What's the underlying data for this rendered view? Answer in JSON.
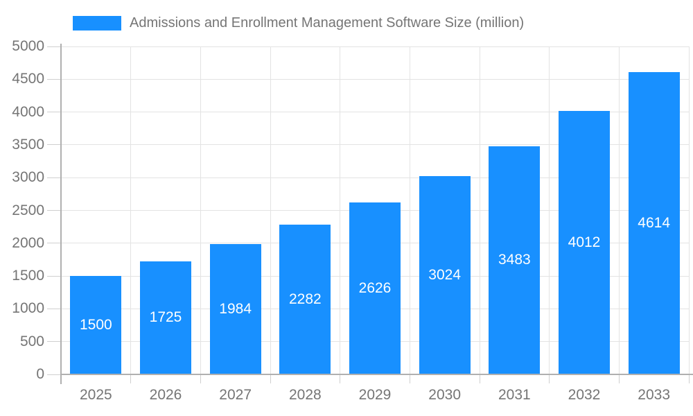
{
  "chart_data": {
    "type": "bar",
    "title": "Admissions and Enrollment Management Software Size (million)",
    "categories": [
      "2025",
      "2026",
      "2027",
      "2028",
      "2029",
      "2030",
      "2031",
      "2032",
      "2033"
    ],
    "values": [
      1500,
      1725,
      1984,
      2282,
      2626,
      3024,
      3483,
      4012,
      4614
    ],
    "xlabel": "",
    "ylabel": "",
    "ylim": [
      0,
      5000
    ],
    "yticks": [
      0,
      500,
      1000,
      1500,
      2000,
      2500,
      3000,
      3500,
      4000,
      4500,
      5000
    ],
    "grid": true,
    "legend_position": "top-left",
    "value_labels": "inside-center"
  },
  "legend": {
    "label": "Admissions and Enrollment Management Software Size (million)"
  },
  "colors": {
    "bar": "#1890ff",
    "grid": "#e3e3e3",
    "axis": "#b0b0b0",
    "tick": "#cfcfcf",
    "text": "#757575",
    "value_text": "#ffffff",
    "background": "#ffffff"
  }
}
